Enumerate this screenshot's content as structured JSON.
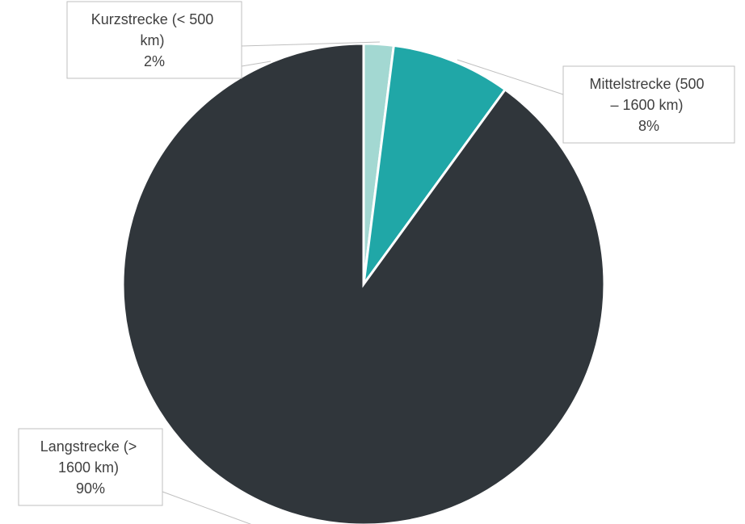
{
  "chart_data": {
    "type": "pie",
    "title": "",
    "slices": [
      {
        "label_lines": [
          "Kurzstrecke (< 500",
          "km)"
        ],
        "value": 2,
        "value_label": "2%",
        "color": "#a3d8d2"
      },
      {
        "label_lines": [
          "Mittelstrecke (500",
          "– 1600 km)"
        ],
        "value": 8,
        "value_label": "8%",
        "color": "#20a7a7"
      },
      {
        "label_lines": [
          "Langstrecke (>",
          "1600 km)"
        ],
        "value": 90,
        "value_label": "90%",
        "color": "#30363b"
      }
    ],
    "start_angle": "12 o'clock",
    "direction": "clockwise",
    "legend": "none",
    "data_labels": "callout"
  }
}
